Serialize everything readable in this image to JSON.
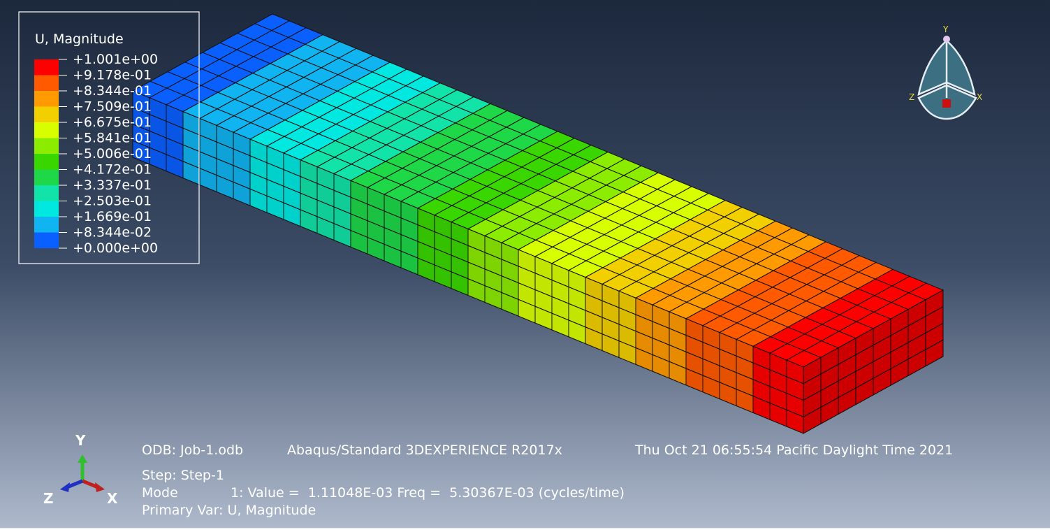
{
  "legend": {
    "title": "U, Magnitude",
    "labels": [
      "+1.001e+00",
      "+9.178e-01",
      "+8.344e-01",
      "+7.509e-01",
      "+6.675e-01",
      "+5.841e-01",
      "+5.006e-01",
      "+4.172e-01",
      "+3.337e-01",
      "+2.503e-01",
      "+1.669e-01",
      "+8.344e-02",
      "+0.000e+00"
    ],
    "colors": [
      "#ff0000",
      "#ff5a00",
      "#ff9a00",
      "#f2d000",
      "#d8ff00",
      "#8cec00",
      "#3ad600",
      "#1ed848",
      "#12e3a8",
      "#00e8e0",
      "#10b4f0",
      "#0a60ff",
      "#0000ff"
    ]
  },
  "info": {
    "odb": "ODB: Job-1.odb",
    "solver": "Abaqus/Standard 3DEXPERIENCE R2017x",
    "date": "Thu Oct 21 06:55:54 Pacific Daylight Time 2021",
    "step": "Step: Step-1",
    "mode_label": "Mode",
    "mode": "1: Value =  1.11048E-03 Freq =  5.30367E-03 (cycles/time)",
    "primary_var": "Primary Var: U, Magnitude"
  },
  "triad": {
    "y": "Y",
    "z": "Z",
    "x": "X"
  },
  "view_cube": {
    "y": "Y",
    "z": "Z",
    "x": "X"
  }
}
